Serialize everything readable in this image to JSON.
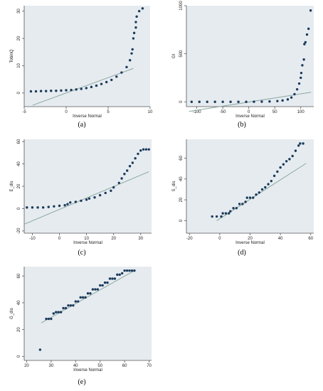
{
  "colors": {
    "background": "#e6ebf0",
    "points": "#1b3b5a",
    "fit_line": "#8aa8a0",
    "axis": "#555555"
  },
  "chart_data": [
    {
      "id": "a",
      "type": "scatter",
      "caption": "(a)",
      "xlabel": "Inverse Normal",
      "ylabel": "TobinQ",
      "xlim": [
        -5,
        10
      ],
      "ylim": [
        -5,
        32
      ],
      "xticks": [
        -5,
        0,
        5,
        10
      ],
      "yticks": [
        0,
        10,
        20,
        30
      ],
      "fit_line": {
        "x": [
          -4,
          8
        ],
        "y": [
          -4.5,
          9
        ]
      },
      "points": [
        [
          -4.2,
          0.6
        ],
        [
          -3.6,
          0.6
        ],
        [
          -3,
          0.7
        ],
        [
          -2.4,
          0.7
        ],
        [
          -1.8,
          0.8
        ],
        [
          -1.2,
          0.8
        ],
        [
          -0.6,
          0.9
        ],
        [
          0,
          1
        ],
        [
          0.6,
          1.1
        ],
        [
          1.2,
          1.3
        ],
        [
          1.8,
          1.5
        ],
        [
          2.4,
          1.8
        ],
        [
          3,
          2.2
        ],
        [
          3.6,
          2.7
        ],
        [
          4.2,
          3.3
        ],
        [
          4.8,
          4
        ],
        [
          5.4,
          4.8
        ],
        [
          6,
          6
        ],
        [
          6.6,
          7.5
        ],
        [
          7.2,
          9.5
        ],
        [
          7.6,
          12
        ],
        [
          7.8,
          14.5
        ],
        [
          7.9,
          16
        ],
        [
          8.0,
          20
        ],
        [
          8.1,
          22
        ],
        [
          8.3,
          24
        ],
        [
          8.3,
          26
        ],
        [
          8.4,
          28
        ],
        [
          8.7,
          30
        ],
        [
          9.1,
          31
        ]
      ]
    },
    {
      "id": "b",
      "type": "scatter",
      "caption": "(b)",
      "xlabel": "Inverse Normal",
      "ylabel": "GI",
      "xlim": [
        -120,
        125
      ],
      "ylim": [
        -50,
        1000
      ],
      "xticks": [
        -100,
        -50,
        0,
        50,
        100
      ],
      "yticks": [
        0,
        500,
        1000
      ],
      "fit_line": {
        "x": [
          -115,
          120
        ],
        "y": [
          -100,
          100
        ]
      },
      "points": [
        [
          -110,
          0
        ],
        [
          -95,
          0
        ],
        [
          -80,
          0
        ],
        [
          -65,
          0
        ],
        [
          -50,
          0
        ],
        [
          -35,
          0
        ],
        [
          -20,
          0
        ],
        [
          -5,
          0
        ],
        [
          10,
          1
        ],
        [
          25,
          2
        ],
        [
          40,
          4
        ],
        [
          55,
          8
        ],
        [
          65,
          14
        ],
        [
          75,
          25
        ],
        [
          82,
          45
        ],
        [
          88,
          80
        ],
        [
          93,
          130
        ],
        [
          97,
          190
        ],
        [
          100,
          250
        ],
        [
          101,
          300
        ],
        [
          103,
          380
        ],
        [
          106,
          440
        ],
        [
          107,
          600
        ],
        [
          109,
          620
        ],
        [
          112,
          700
        ],
        [
          115,
          760
        ],
        [
          119,
          950
        ]
      ]
    },
    {
      "id": "c",
      "type": "scatter",
      "caption": "(c)",
      "xlabel": "Inverse Normal",
      "ylabel": "E_dis",
      "xlim": [
        -13,
        34
      ],
      "ylim": [
        -22,
        62
      ],
      "xticks": [
        -10,
        0,
        10,
        20,
        30
      ],
      "yticks": [
        -20,
        0,
        20,
        40,
        60
      ],
      "fit_line": {
        "x": [
          -13,
          33
        ],
        "y": [
          -14,
          33
        ]
      },
      "points": [
        [
          -12,
          1
        ],
        [
          -10,
          1
        ],
        [
          -8,
          1
        ],
        [
          -6,
          1
        ],
        [
          -4,
          1.5
        ],
        [
          -2,
          2
        ],
        [
          0,
          2.5
        ],
        [
          2,
          3
        ],
        [
          3,
          4
        ],
        [
          4,
          5.5
        ],
        [
          6,
          6
        ],
        [
          8,
          7
        ],
        [
          10,
          8
        ],
        [
          11,
          9
        ],
        [
          13,
          10
        ],
        [
          15,
          12
        ],
        [
          17,
          14
        ],
        [
          19,
          16
        ],
        [
          20,
          19
        ],
        [
          22,
          23
        ],
        [
          23,
          27
        ],
        [
          24,
          31
        ],
        [
          25,
          34
        ],
        [
          26,
          38
        ],
        [
          27,
          41
        ],
        [
          28,
          45
        ],
        [
          29,
          49
        ],
        [
          30,
          52
        ],
        [
          31,
          53
        ],
        [
          32,
          53
        ],
        [
          33,
          53
        ]
      ]
    },
    {
      "id": "d",
      "type": "scatter",
      "caption": "(d)",
      "xlabel": "Inverse Normal",
      "ylabel": "S_dis",
      "xlim": [
        -22,
        62
      ],
      "ylim": [
        -12,
        78
      ],
      "xticks": [
        -20,
        0,
        20,
        40,
        60
      ],
      "yticks": [
        0,
        20,
        40,
        60
      ],
      "fit_line": {
        "x": [
          -2,
          57
        ],
        "y": [
          0,
          55
        ]
      },
      "points": [
        [
          -5,
          4
        ],
        [
          -2,
          4
        ],
        [
          1,
          4
        ],
        [
          2,
          7
        ],
        [
          4,
          7
        ],
        [
          6,
          7
        ],
        [
          7,
          9
        ],
        [
          9,
          12
        ],
        [
          11,
          12
        ],
        [
          13,
          16
        ],
        [
          15,
          16
        ],
        [
          17,
          18
        ],
        [
          18,
          22
        ],
        [
          20,
          22
        ],
        [
          22,
          22
        ],
        [
          24,
          25
        ],
        [
          26,
          27
        ],
        [
          28,
          30
        ],
        [
          30,
          32
        ],
        [
          32,
          35
        ],
        [
          34,
          38
        ],
        [
          36,
          43
        ],
        [
          38,
          47
        ],
        [
          40,
          51
        ],
        [
          42,
          54
        ],
        [
          44,
          57
        ],
        [
          46,
          59
        ],
        [
          48,
          62
        ],
        [
          50,
          67
        ],
        [
          52,
          72
        ],
        [
          53,
          74
        ],
        [
          55,
          74
        ]
      ]
    },
    {
      "id": "e",
      "type": "scatter",
      "caption": "(e)",
      "xlabel": "Inverse Normal",
      "ylabel": "G_dis",
      "xlim": [
        19,
        71
      ],
      "ylim": [
        -3,
        67
      ],
      "xticks": [
        20,
        30,
        40,
        50,
        60,
        70
      ],
      "yticks": [
        0,
        20,
        40,
        60
      ],
      "fit_line": {
        "x": [
          26,
          64
        ],
        "y": [
          25,
          64
        ]
      },
      "points": [
        [
          25.5,
          5
        ],
        [
          28,
          28
        ],
        [
          29,
          28
        ],
        [
          30,
          28
        ],
        [
          31,
          32
        ],
        [
          32,
          33
        ],
        [
          33,
          33
        ],
        [
          34,
          33
        ],
        [
          35,
          36
        ],
        [
          36,
          36
        ],
        [
          37,
          38
        ],
        [
          38,
          38
        ],
        [
          39,
          38
        ],
        [
          40,
          41
        ],
        [
          41,
          41
        ],
        [
          42,
          44
        ],
        [
          43,
          44
        ],
        [
          44,
          44
        ],
        [
          45,
          47
        ],
        [
          46,
          47
        ],
        [
          47,
          50
        ],
        [
          48,
          50
        ],
        [
          49,
          50
        ],
        [
          50,
          53
        ],
        [
          51,
          53
        ],
        [
          52,
          55
        ],
        [
          53,
          55
        ],
        [
          54,
          58
        ],
        [
          55,
          58
        ],
        [
          56,
          58
        ],
        [
          57,
          61
        ],
        [
          58,
          61
        ],
        [
          59,
          62
        ],
        [
          60,
          64
        ],
        [
          61,
          64
        ],
        [
          62,
          64
        ],
        [
          63,
          64
        ],
        [
          64,
          64
        ]
      ]
    }
  ]
}
